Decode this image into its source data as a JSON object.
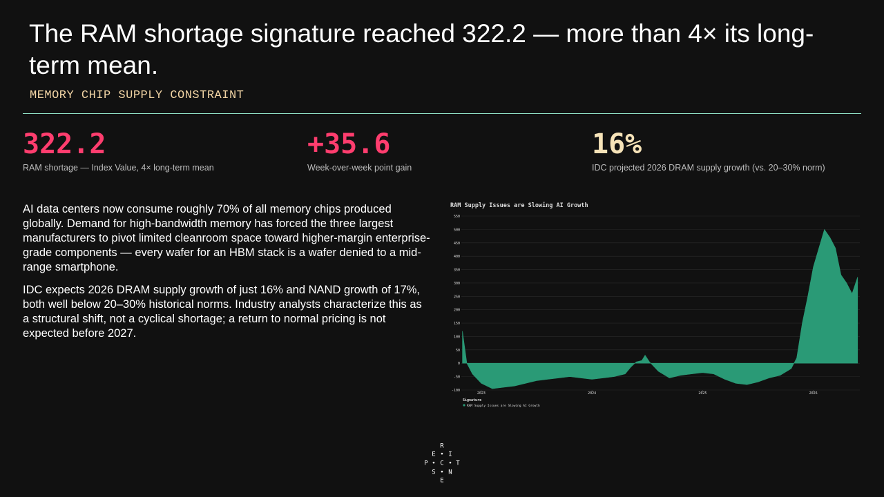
{
  "header": {
    "title": "The RAM shortage signature reached 322.2 — more than 4× its long-term mean.",
    "subtitle": "MEMORY CHIP SUPPLY CONSTRAINT"
  },
  "stats": [
    {
      "value": "322.2",
      "label": "RAM shortage — Index Value, 4× long-term mean"
    },
    {
      "value": "+35.6",
      "label": "Week-over-week point gain"
    },
    {
      "value": "16%",
      "label": "IDC projected 2026 DRAM supply growth (vs. 20–30% norm)"
    }
  ],
  "paragraphs": [
    "AI data centers now consume roughly 70% of all memory chips produced globally. Demand for high-bandwidth memory has forced the three largest manufacturers to pivot limited cleanroom space toward higher-margin enterprise-grade components — every wafer for an HBM stack is a wafer denied to a mid-range smartphone.",
    "IDC expects 2026 DRAM supply growth of just 16% and NAND growth of 17%, both well below 20–30% historical norms. Industry analysts characterize this as a structural shift, not a cyclical shortage; a return to normal pricing is not expected before 2027."
  ],
  "logo": [
    "R",
    "E",
    "I",
    "P",
    "C",
    "T",
    "S",
    "N",
    "E"
  ],
  "chart_data": {
    "type": "area",
    "title": "RAM Supply Issues are Slowing AI Growth",
    "legend_title": "Signature",
    "x": [
      2022.83,
      2022.87,
      2022.92,
      2023.0,
      2023.1,
      2023.2,
      2023.3,
      2023.4,
      2023.5,
      2023.6,
      2023.7,
      2023.8,
      2023.9,
      2024.0,
      2024.1,
      2024.2,
      2024.3,
      2024.35,
      2024.4,
      2024.45,
      2024.48,
      2024.52,
      2024.6,
      2024.7,
      2024.8,
      2024.9,
      2025.0,
      2025.1,
      2025.2,
      2025.3,
      2025.4,
      2025.5,
      2025.6,
      2025.7,
      2025.8,
      2025.85,
      2025.9,
      2025.95,
      2026.0,
      2026.05,
      2026.1,
      2026.15,
      2026.2,
      2026.25,
      2026.3,
      2026.35,
      2026.4
    ],
    "series": [
      {
        "name": "RAM Supply Issues are Slowing AI Growth",
        "color": "#2a9a76",
        "values": [
          120,
          0,
          -40,
          -75,
          -95,
          -90,
          -85,
          -75,
          -65,
          -60,
          -55,
          -50,
          -55,
          -60,
          -55,
          -50,
          -40,
          -15,
          5,
          10,
          30,
          5,
          -30,
          -55,
          -45,
          -40,
          -35,
          -40,
          -60,
          -75,
          -80,
          -70,
          -55,
          -45,
          -20,
          20,
          150,
          250,
          360,
          430,
          500,
          470,
          430,
          330,
          300,
          260,
          322.2
        ]
      }
    ],
    "xlim": [
      2022.82,
      2026.42
    ],
    "xticks": [
      2023,
      2024,
      2025,
      2026
    ],
    "ylim": [
      -100,
      550
    ],
    "yticks": [
      -100,
      -50,
      0,
      50,
      100,
      150,
      200,
      250,
      300,
      350,
      400,
      450,
      500,
      550
    ],
    "grid": true
  }
}
